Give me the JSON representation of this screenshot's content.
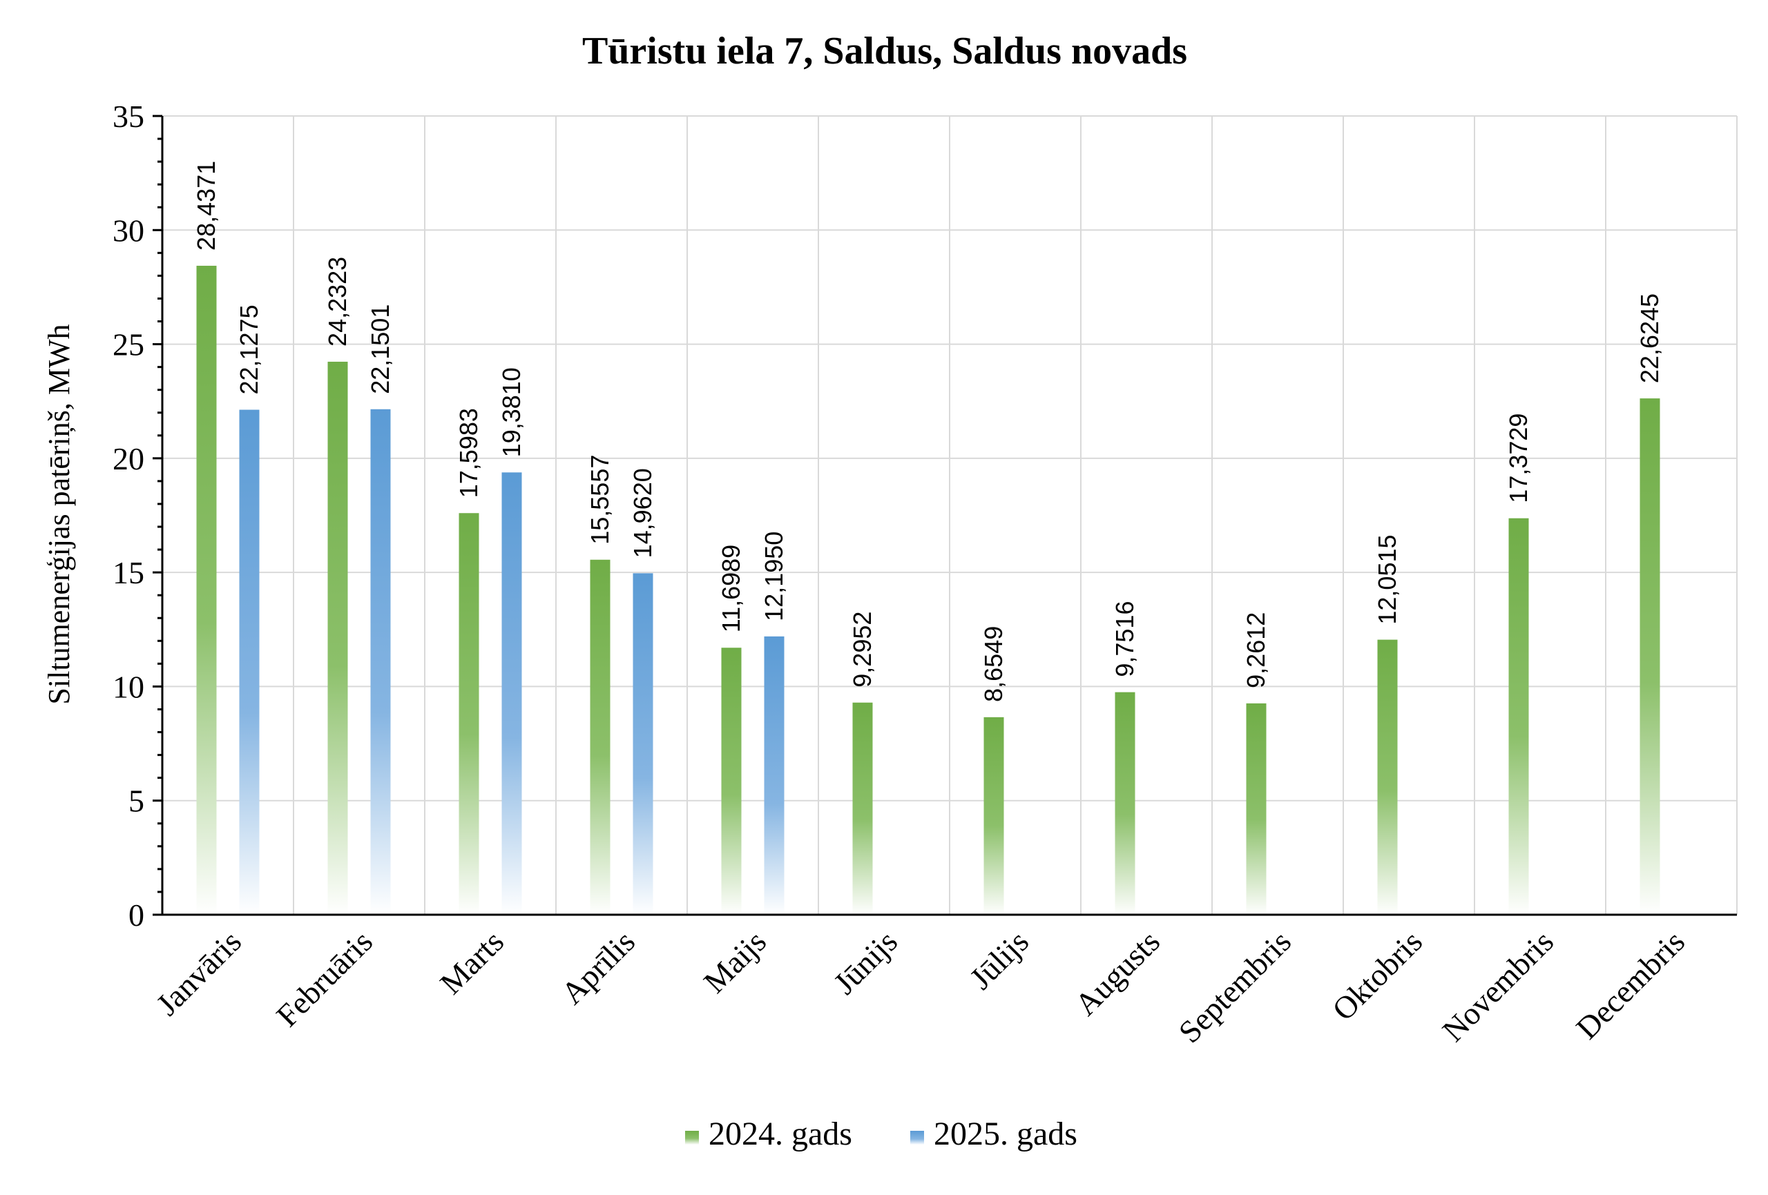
{
  "chart_data": {
    "type": "bar",
    "title": "Tūristu iela 7, Saldus, Saldus novads",
    "xlabel": "",
    "ylabel": "Siltumenerģijas patēriņš, MWh",
    "ylim": [
      0,
      35
    ],
    "yticks": [
      "0",
      "5",
      "10",
      "15",
      "20",
      "25",
      "30",
      "35"
    ],
    "grid": true,
    "legend_position": "bottom",
    "categories": [
      "Janvāris",
      "Februāris",
      "Marts",
      "Aprīlis",
      "Maijs",
      "Jūnijs",
      "Jūlijs",
      "Augusts",
      "Septembris",
      "Oktobris",
      "Novembris",
      "Decembris"
    ],
    "series": [
      {
        "name": "2024. gads",
        "color": "#70ad47",
        "values": [
          28.4371,
          24.2323,
          17.5983,
          15.5557,
          11.6989,
          9.2952,
          8.6549,
          9.7516,
          9.2612,
          12.0515,
          17.3729,
          22.6245
        ],
        "labels": [
          "28,4371",
          "24,2323",
          "17,5983",
          "15,5557",
          "11,6989",
          "9,2952",
          "8,6549",
          "9,7516",
          "9,2612",
          "12,0515",
          "17,3729",
          "22,6245"
        ]
      },
      {
        "name": "2025. gads",
        "color": "#5b9bd5",
        "values": [
          22.1275,
          22.1501,
          19.381,
          14.962,
          12.195,
          null,
          null,
          null,
          null,
          null,
          null,
          null
        ],
        "labels": [
          "22,1275",
          "22,1501",
          "19,3810",
          "14,9620",
          "12,1950",
          null,
          null,
          null,
          null,
          null,
          null,
          null
        ]
      }
    ]
  }
}
